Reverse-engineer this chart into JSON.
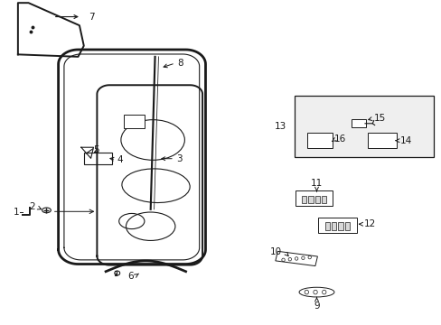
{
  "bg_color": "#ffffff",
  "line_color": "#1a1a1a",
  "lw_main": 1.4,
  "lw_thin": 0.8,
  "lw_frame": 2.0
}
